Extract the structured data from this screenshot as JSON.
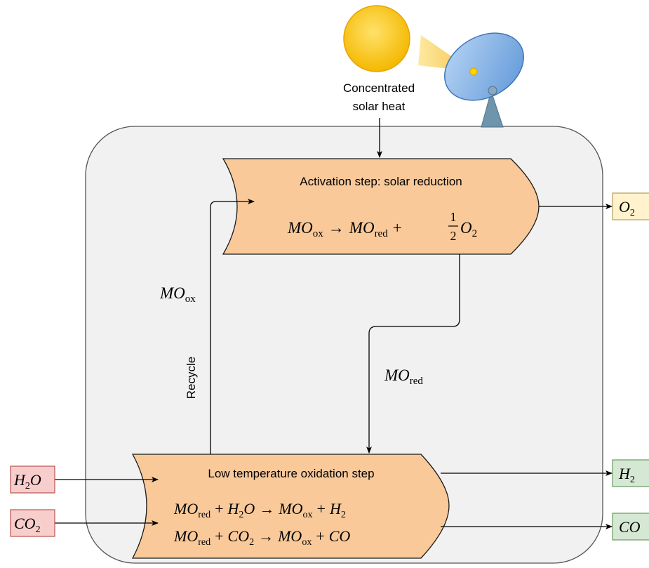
{
  "source": {
    "label_line1": "Concentrated",
    "label_line2": "solar heat"
  },
  "reduction_step": {
    "title": "Activation step: solar reduction",
    "eq": {
      "a": "MO",
      "a_sub": "ox",
      "arrow": "→",
      "b": "MO",
      "b_sub": "red",
      "plus": "+",
      "frac_num": "1",
      "frac_den": "2",
      "c": "O",
      "c_sub": "2"
    }
  },
  "oxidation_step": {
    "title": "Low temperature oxidation step",
    "eq1": {
      "a": "MO",
      "a_sub": "red",
      "plus1": "+",
      "b": "H",
      "b_sub": "2",
      "b_tail": "O",
      "arrow": "→",
      "c": "MO",
      "c_sub": "ox",
      "plus2": "+",
      "d": "H",
      "d_sub": "2"
    },
    "eq2": {
      "a": "MO",
      "a_sub": "red",
      "plus1": "+",
      "b": "CO",
      "b_sub": "2",
      "arrow": "→",
      "c": "MO",
      "c_sub": "ox",
      "plus2": "+",
      "d": "CO"
    }
  },
  "flows": {
    "recycle_label": "Recycle",
    "mo_ox": {
      "main": "MO",
      "sub": "ox"
    },
    "mo_red": {
      "main": "MO",
      "sub": "red"
    }
  },
  "inputs": {
    "h2o": {
      "a": "H",
      "sub": "2",
      "b": "O"
    },
    "co2": {
      "a": "CO",
      "sub": "2"
    }
  },
  "outputs": {
    "o2": {
      "a": "O",
      "sub": "2"
    },
    "h2": {
      "a": "H",
      "sub": "2"
    },
    "co": {
      "a": "CO"
    }
  },
  "colors": {
    "step_fill": "#f9c99a",
    "container_fill": "#f1f1f1",
    "input_fill": "#f8cecc",
    "o2_fill": "#fff2cc",
    "product_fill": "#d5e8d4",
    "sun": "#f5c000",
    "dish": "#7aaee6"
  }
}
